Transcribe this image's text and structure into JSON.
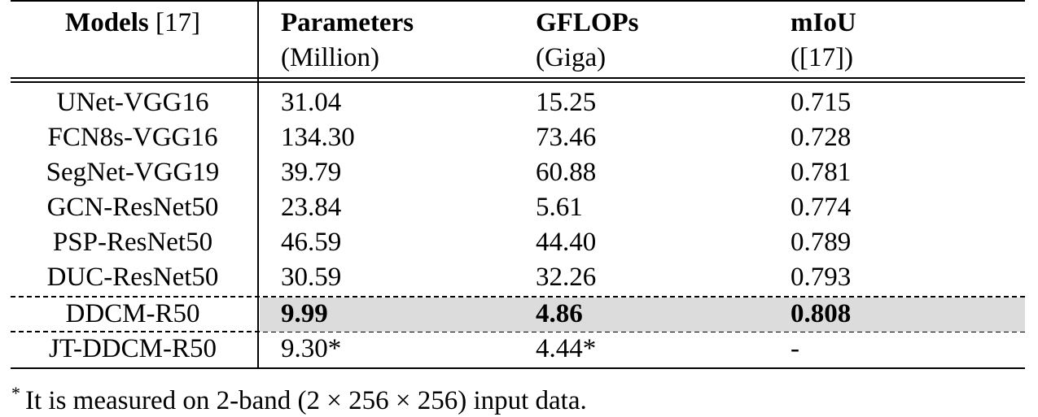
{
  "table": {
    "headers": [
      {
        "line1": "Models",
        "line1_suffix": " [17]",
        "line2": ""
      },
      {
        "line1": "Parameters",
        "line1_suffix": "",
        "line2": "(Million)"
      },
      {
        "line1": "GFLOPs",
        "line1_suffix": "",
        "line2": "(Giga)"
      },
      {
        "line1": "mIoU",
        "line1_suffix": "",
        "line2": "([17])"
      }
    ],
    "rows": [
      {
        "model": "UNet-VGG16",
        "params": "31.04",
        "gflops": "15.25",
        "miou": "0.715"
      },
      {
        "model": "FCN8s-VGG16",
        "params": "134.30",
        "gflops": "73.46",
        "miou": "0.728"
      },
      {
        "model": "SegNet-VGG19",
        "params": "39.79",
        "gflops": "60.88",
        "miou": "0.781"
      },
      {
        "model": "GCN-ResNet50",
        "params": "23.84",
        "gflops": "5.61",
        "miou": "0.774"
      },
      {
        "model": "PSP-ResNet50",
        "params": "46.59",
        "gflops": "44.40",
        "miou": "0.789"
      },
      {
        "model": "DUC-ResNet50",
        "params": "30.59",
        "gflops": "32.26",
        "miou": "0.793"
      },
      {
        "model": "DDCM-R50",
        "params": "9.99",
        "gflops": "4.86",
        "miou": "0.808"
      },
      {
        "model": "JT-DDCM-R50",
        "params": "9.30*",
        "gflops": "4.44*",
        "miou": "-"
      }
    ]
  },
  "footnote": {
    "marker": "*",
    "text": "It is measured on 2-band (2 × 256 × 256) input data."
  }
}
